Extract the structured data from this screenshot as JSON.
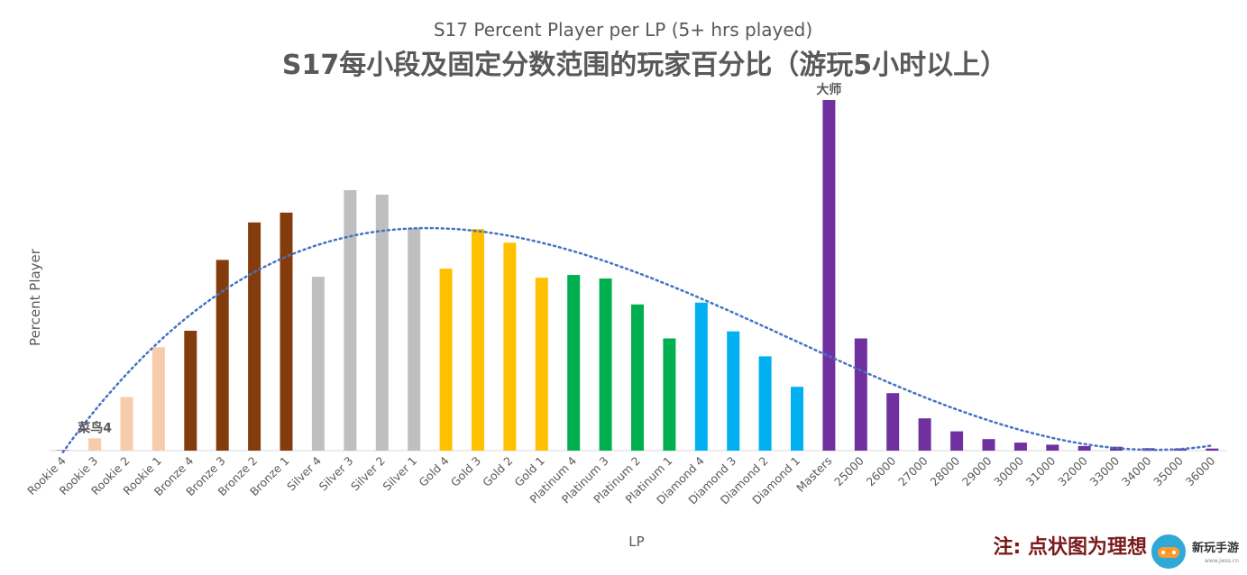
{
  "chart_data": {
    "type": "bar",
    "title": "S17 Percent Player per LP (5+ hrs played)",
    "subtitle": "S17每小段及固定分数范围的玩家百分比（游玩5小时以上）",
    "xlabel": "LP",
    "ylabel": "Percent Player",
    "grid": false,
    "legend": "none",
    "ylim": [
      0,
      100
    ],
    "categories": [
      "Rookie 4",
      "Rookie 3",
      "Rookie 2",
      "Rookie 1",
      "Bronze 4",
      "Bronze 3",
      "Bronze 2",
      "Bronze 1",
      "Silver 4",
      "Silver 3",
      "Silver 2",
      "Silver 1",
      "Gold 4",
      "Gold 3",
      "Gold 2",
      "Gold 1",
      "Platinum 4",
      "Platinum 3",
      "Platinum 2",
      "Platinum 1",
      "Diamond 4",
      "Diamond 3",
      "Diamond 2",
      "Diamond 1",
      "Masters",
      "25000",
      "26000",
      "27000",
      "28000",
      "29000",
      "30000",
      "31000",
      "32000",
      "33000",
      "34000",
      "35000",
      "36000"
    ],
    "values": [
      0.2,
      3.5,
      15.3,
      29.5,
      34.2,
      54.4,
      65.1,
      67.9,
      49.6,
      74.3,
      73.0,
      63.5,
      51.9,
      63.2,
      59.3,
      49.3,
      50.1,
      49.1,
      41.7,
      32.0,
      42.2,
      34.0,
      26.9,
      18.2,
      100,
      32.0,
      16.4,
      9.2,
      5.5,
      3.3,
      2.3,
      1.7,
      1.3,
      1.1,
      0.7,
      0.6,
      0.6
    ],
    "colors": [
      "#b4a7d6",
      "#f8cbad",
      "#f8cbad",
      "#f8cbad",
      "#843c0c",
      "#843c0c",
      "#843c0c",
      "#843c0c",
      "#bfbfbf",
      "#bfbfbf",
      "#bfbfbf",
      "#bfbfbf",
      "#ffc000",
      "#ffc000",
      "#ffc000",
      "#ffc000",
      "#00b050",
      "#00b050",
      "#00b050",
      "#00b050",
      "#00b0f0",
      "#00b0f0",
      "#00b0f0",
      "#00b0f0",
      "#7030a0",
      "#7030a0",
      "#7030a0",
      "#7030a0",
      "#7030a0",
      "#7030a0",
      "#7030a0",
      "#7030a0",
      "#7030a0",
      "#7030a0",
      "#7030a0",
      "#7030a0",
      "#7030a0"
    ],
    "trendline": {
      "style": "dotted",
      "color": "#4472c4",
      "type": "polynomial"
    },
    "annotations": [
      {
        "text": "菜鸟4",
        "category": "Rookie 3"
      },
      {
        "text": "大师",
        "category": "Masters"
      }
    ],
    "note": "注: 点状图为理想"
  },
  "watermark": {
    "text": "新玩手游",
    "url": "www.jwss.cn"
  }
}
